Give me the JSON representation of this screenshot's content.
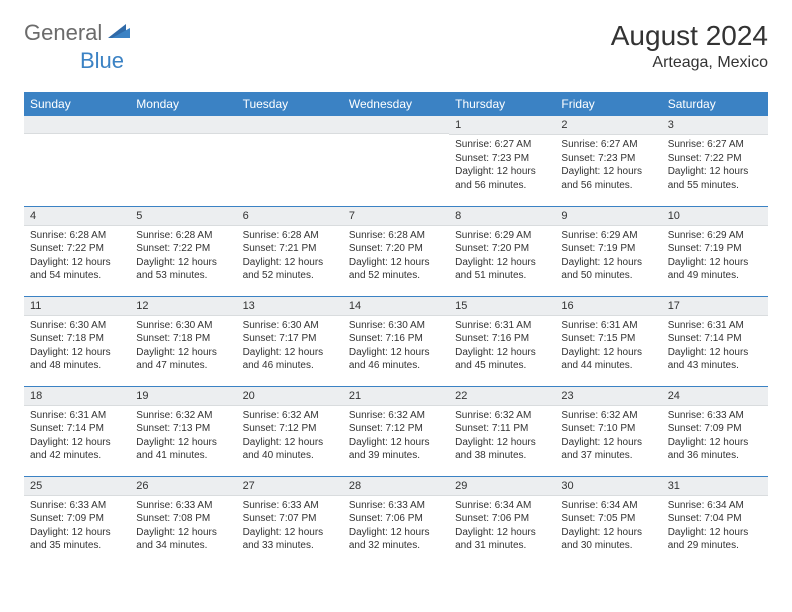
{
  "logo": {
    "text1": "General",
    "text2": "Blue"
  },
  "title": "August 2024",
  "location": "Arteaga, Mexico",
  "colors": {
    "header_bg": "#3b82c4",
    "header_text": "#ffffff",
    "daynum_bg": "#eceef0",
    "body_text": "#333333",
    "logo_blue": "#3b82c4",
    "logo_gray": "#6b6b6b"
  },
  "weekdays": [
    "Sunday",
    "Monday",
    "Tuesday",
    "Wednesday",
    "Thursday",
    "Friday",
    "Saturday"
  ],
  "weeks": [
    [
      {
        "day": "",
        "sunrise": "",
        "sunset": "",
        "daylight": ""
      },
      {
        "day": "",
        "sunrise": "",
        "sunset": "",
        "daylight": ""
      },
      {
        "day": "",
        "sunrise": "",
        "sunset": "",
        "daylight": ""
      },
      {
        "day": "",
        "sunrise": "",
        "sunset": "",
        "daylight": ""
      },
      {
        "day": "1",
        "sunrise": "Sunrise: 6:27 AM",
        "sunset": "Sunset: 7:23 PM",
        "daylight": "Daylight: 12 hours and 56 minutes."
      },
      {
        "day": "2",
        "sunrise": "Sunrise: 6:27 AM",
        "sunset": "Sunset: 7:23 PM",
        "daylight": "Daylight: 12 hours and 56 minutes."
      },
      {
        "day": "3",
        "sunrise": "Sunrise: 6:27 AM",
        "sunset": "Sunset: 7:22 PM",
        "daylight": "Daylight: 12 hours and 55 minutes."
      }
    ],
    [
      {
        "day": "4",
        "sunrise": "Sunrise: 6:28 AM",
        "sunset": "Sunset: 7:22 PM",
        "daylight": "Daylight: 12 hours and 54 minutes."
      },
      {
        "day": "5",
        "sunrise": "Sunrise: 6:28 AM",
        "sunset": "Sunset: 7:22 PM",
        "daylight": "Daylight: 12 hours and 53 minutes."
      },
      {
        "day": "6",
        "sunrise": "Sunrise: 6:28 AM",
        "sunset": "Sunset: 7:21 PM",
        "daylight": "Daylight: 12 hours and 52 minutes."
      },
      {
        "day": "7",
        "sunrise": "Sunrise: 6:28 AM",
        "sunset": "Sunset: 7:20 PM",
        "daylight": "Daylight: 12 hours and 52 minutes."
      },
      {
        "day": "8",
        "sunrise": "Sunrise: 6:29 AM",
        "sunset": "Sunset: 7:20 PM",
        "daylight": "Daylight: 12 hours and 51 minutes."
      },
      {
        "day": "9",
        "sunrise": "Sunrise: 6:29 AM",
        "sunset": "Sunset: 7:19 PM",
        "daylight": "Daylight: 12 hours and 50 minutes."
      },
      {
        "day": "10",
        "sunrise": "Sunrise: 6:29 AM",
        "sunset": "Sunset: 7:19 PM",
        "daylight": "Daylight: 12 hours and 49 minutes."
      }
    ],
    [
      {
        "day": "11",
        "sunrise": "Sunrise: 6:30 AM",
        "sunset": "Sunset: 7:18 PM",
        "daylight": "Daylight: 12 hours and 48 minutes."
      },
      {
        "day": "12",
        "sunrise": "Sunrise: 6:30 AM",
        "sunset": "Sunset: 7:18 PM",
        "daylight": "Daylight: 12 hours and 47 minutes."
      },
      {
        "day": "13",
        "sunrise": "Sunrise: 6:30 AM",
        "sunset": "Sunset: 7:17 PM",
        "daylight": "Daylight: 12 hours and 46 minutes."
      },
      {
        "day": "14",
        "sunrise": "Sunrise: 6:30 AM",
        "sunset": "Sunset: 7:16 PM",
        "daylight": "Daylight: 12 hours and 46 minutes."
      },
      {
        "day": "15",
        "sunrise": "Sunrise: 6:31 AM",
        "sunset": "Sunset: 7:16 PM",
        "daylight": "Daylight: 12 hours and 45 minutes."
      },
      {
        "day": "16",
        "sunrise": "Sunrise: 6:31 AM",
        "sunset": "Sunset: 7:15 PM",
        "daylight": "Daylight: 12 hours and 44 minutes."
      },
      {
        "day": "17",
        "sunrise": "Sunrise: 6:31 AM",
        "sunset": "Sunset: 7:14 PM",
        "daylight": "Daylight: 12 hours and 43 minutes."
      }
    ],
    [
      {
        "day": "18",
        "sunrise": "Sunrise: 6:31 AM",
        "sunset": "Sunset: 7:14 PM",
        "daylight": "Daylight: 12 hours and 42 minutes."
      },
      {
        "day": "19",
        "sunrise": "Sunrise: 6:32 AM",
        "sunset": "Sunset: 7:13 PM",
        "daylight": "Daylight: 12 hours and 41 minutes."
      },
      {
        "day": "20",
        "sunrise": "Sunrise: 6:32 AM",
        "sunset": "Sunset: 7:12 PM",
        "daylight": "Daylight: 12 hours and 40 minutes."
      },
      {
        "day": "21",
        "sunrise": "Sunrise: 6:32 AM",
        "sunset": "Sunset: 7:12 PM",
        "daylight": "Daylight: 12 hours and 39 minutes."
      },
      {
        "day": "22",
        "sunrise": "Sunrise: 6:32 AM",
        "sunset": "Sunset: 7:11 PM",
        "daylight": "Daylight: 12 hours and 38 minutes."
      },
      {
        "day": "23",
        "sunrise": "Sunrise: 6:32 AM",
        "sunset": "Sunset: 7:10 PM",
        "daylight": "Daylight: 12 hours and 37 minutes."
      },
      {
        "day": "24",
        "sunrise": "Sunrise: 6:33 AM",
        "sunset": "Sunset: 7:09 PM",
        "daylight": "Daylight: 12 hours and 36 minutes."
      }
    ],
    [
      {
        "day": "25",
        "sunrise": "Sunrise: 6:33 AM",
        "sunset": "Sunset: 7:09 PM",
        "daylight": "Daylight: 12 hours and 35 minutes."
      },
      {
        "day": "26",
        "sunrise": "Sunrise: 6:33 AM",
        "sunset": "Sunset: 7:08 PM",
        "daylight": "Daylight: 12 hours and 34 minutes."
      },
      {
        "day": "27",
        "sunrise": "Sunrise: 6:33 AM",
        "sunset": "Sunset: 7:07 PM",
        "daylight": "Daylight: 12 hours and 33 minutes."
      },
      {
        "day": "28",
        "sunrise": "Sunrise: 6:33 AM",
        "sunset": "Sunset: 7:06 PM",
        "daylight": "Daylight: 12 hours and 32 minutes."
      },
      {
        "day": "29",
        "sunrise": "Sunrise: 6:34 AM",
        "sunset": "Sunset: 7:06 PM",
        "daylight": "Daylight: 12 hours and 31 minutes."
      },
      {
        "day": "30",
        "sunrise": "Sunrise: 6:34 AM",
        "sunset": "Sunset: 7:05 PM",
        "daylight": "Daylight: 12 hours and 30 minutes."
      },
      {
        "day": "31",
        "sunrise": "Sunrise: 6:34 AM",
        "sunset": "Sunset: 7:04 PM",
        "daylight": "Daylight: 12 hours and 29 minutes."
      }
    ]
  ]
}
